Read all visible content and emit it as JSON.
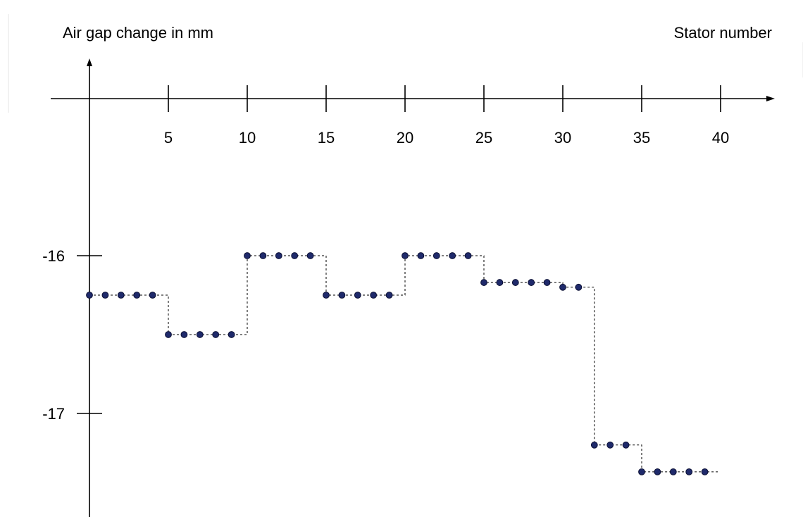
{
  "chart_data": {
    "type": "line",
    "ylabel": "Air gap change in mm",
    "xlabel": "Stator number",
    "x_ticks": [
      5,
      10,
      15,
      20,
      25,
      30,
      35,
      40
    ],
    "y_ticks": [
      -16,
      -17
    ],
    "xlim": [
      0,
      43
    ],
    "ylim": [
      -17.65,
      -15.0
    ],
    "grid": false,
    "legend": "none",
    "point_color": "#1f2a6b",
    "series": [
      {
        "x": [
          0,
          1,
          2,
          3,
          4,
          5,
          6,
          7,
          8,
          9,
          10,
          11,
          12,
          13,
          14,
          15,
          16,
          17,
          18,
          19,
          20,
          21,
          22,
          23,
          24,
          25,
          26,
          27,
          28,
          29,
          30,
          31,
          32,
          33,
          34,
          35,
          36,
          37,
          38,
          39
        ],
        "y": [
          -16.25,
          -16.25,
          -16.25,
          -16.25,
          -16.25,
          -16.5,
          -16.5,
          -16.5,
          -16.5,
          -16.5,
          -16.0,
          -16.0,
          -16.0,
          -16.0,
          -16.0,
          -16.25,
          -16.25,
          -16.25,
          -16.25,
          -16.25,
          -16.0,
          -16.0,
          -16.0,
          -16.0,
          -16.0,
          -16.17,
          -16.17,
          -16.17,
          -16.17,
          -16.17,
          -16.2,
          -16.2,
          -17.2,
          -17.2,
          -17.2,
          -17.37,
          -17.37,
          -17.37,
          -17.37,
          -17.37
        ]
      }
    ]
  }
}
